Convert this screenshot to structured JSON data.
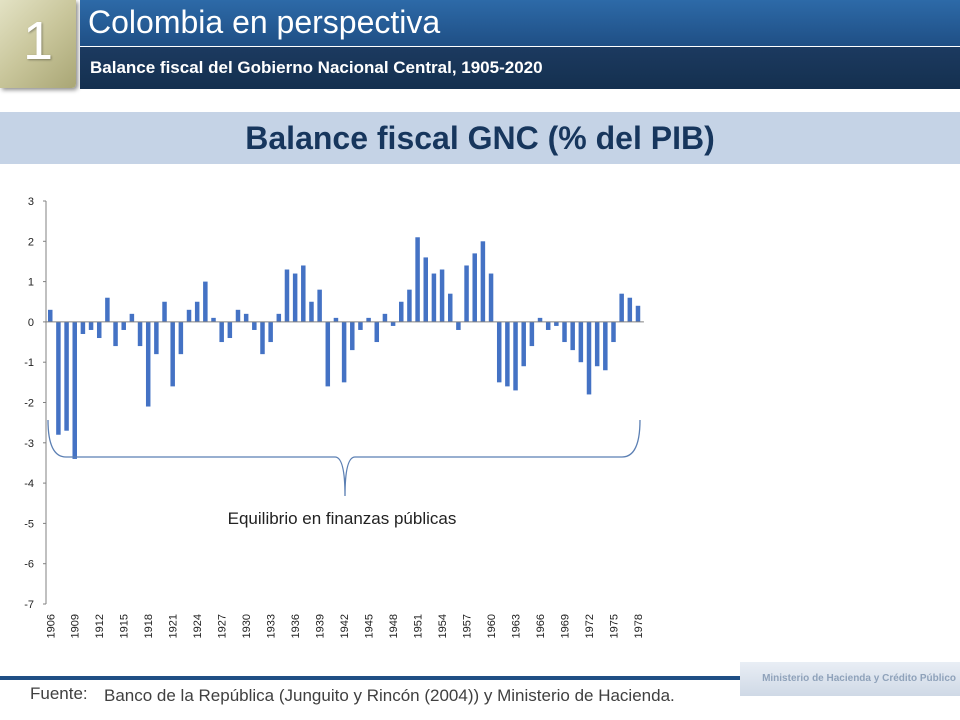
{
  "header": {
    "section_number": "1",
    "title": "Colombia en perspectiva",
    "subtitle": "Balance fiscal del Gobierno Nacional Central, 1905-2020"
  },
  "chart_title": "Balance fiscal GNC  (% del PIB)",
  "annotation": "Equilibrio en finanzas públicas",
  "footer": {
    "source_label": "Fuente:",
    "source_text": "Banco de la República (Junguito y Rincón (2004)) y Ministerio de Hacienda.",
    "logo_text": "Ministerio de Hacienda y Crédito Público"
  },
  "colors": {
    "bar": "#4472c4",
    "axis": "#808080",
    "title": "#17365d",
    "band": "#c5d3e6"
  },
  "chart_data": {
    "type": "bar",
    "title": "Balance fiscal GNC  (% del PIB)",
    "xlabel": "",
    "ylabel": "",
    "ylim": [
      -7,
      3
    ],
    "yticks": [
      3,
      2,
      1,
      0,
      -1,
      -2,
      -3,
      -4,
      -5,
      -6,
      -7
    ],
    "x_tick_labels": [
      "1906",
      "1909",
      "1912",
      "1915",
      "1918",
      "1921",
      "1924",
      "1927",
      "1930",
      "1933",
      "1936",
      "1939",
      "1942",
      "1945",
      "1948",
      "1951",
      "1954",
      "1957",
      "1960",
      "1963",
      "1966",
      "1969",
      "1972",
      "1975",
      "1978"
    ],
    "categories": [
      1906,
      1907,
      1908,
      1909,
      1910,
      1911,
      1912,
      1913,
      1914,
      1915,
      1916,
      1917,
      1918,
      1919,
      1920,
      1921,
      1922,
      1923,
      1924,
      1925,
      1926,
      1927,
      1928,
      1929,
      1930,
      1931,
      1932,
      1933,
      1934,
      1935,
      1936,
      1937,
      1938,
      1939,
      1940,
      1941,
      1942,
      1943,
      1944,
      1945,
      1946,
      1947,
      1948,
      1949,
      1950,
      1951,
      1952,
      1953,
      1954,
      1955,
      1956,
      1957,
      1958,
      1959,
      1960,
      1961,
      1962,
      1963,
      1964,
      1965,
      1966,
      1967,
      1968,
      1969,
      1970,
      1971,
      1972,
      1973,
      1974,
      1975,
      1976,
      1977,
      1978
    ],
    "values": [
      0.3,
      -2.8,
      -2.7,
      -3.4,
      -0.3,
      -0.2,
      -0.4,
      0.6,
      -0.6,
      -0.2,
      0.2,
      -0.6,
      -2.1,
      -0.8,
      0.5,
      -1.6,
      -0.8,
      0.3,
      0.5,
      1.0,
      0.1,
      -0.5,
      -0.4,
      0.3,
      0.2,
      -0.2,
      -0.8,
      -0.5,
      0.2,
      1.3,
      1.2,
      1.4,
      0.5,
      0.8,
      -1.6,
      0.1,
      -1.5,
      -0.7,
      -0.2,
      0.1,
      -0.5,
      0.2,
      -0.1,
      0.5,
      0.8,
      2.1,
      1.6,
      1.2,
      1.3,
      0.7,
      -0.2,
      1.4,
      1.7,
      2.0,
      1.2,
      -1.5,
      -1.6,
      -1.7,
      -1.1,
      -0.6,
      0.1,
      -0.2,
      -0.1,
      -0.5,
      -0.7,
      -1.0,
      -1.8,
      -1.1,
      -1.2,
      -0.5,
      0.7,
      0.6,
      0.4
    ]
  }
}
